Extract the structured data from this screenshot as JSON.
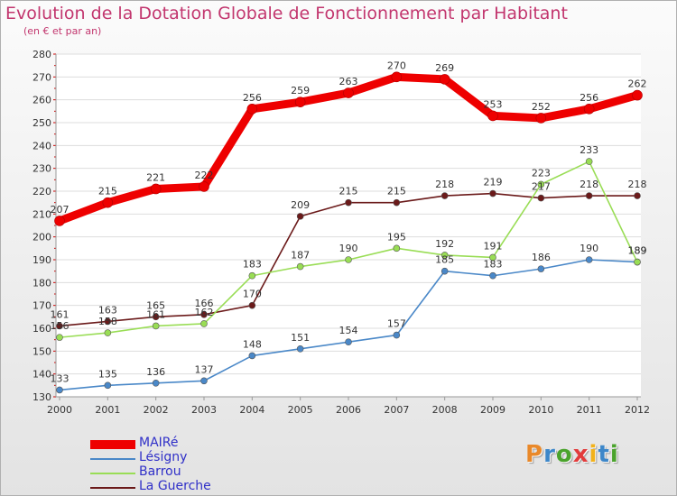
{
  "header": {
    "title": "Evolution de la Dotation Globale de Fonctionnement par Habitant",
    "subtitle": "(en € et par an)"
  },
  "logo": {
    "text": "Proxiti",
    "colors": [
      "#e9892a",
      "#3d87c9",
      "#4aa32c",
      "#e23b3b",
      "#f2b21b",
      "#3d87c9",
      "#4aa32c"
    ]
  },
  "chart_data": {
    "type": "line",
    "title": "Evolution de la Dotation Globale de Fonctionnement par Habitant",
    "subtitle": "(en € et par an)",
    "xlabel": "",
    "ylabel": "",
    "x": [
      "2000",
      "2001",
      "2002",
      "2003",
      "2004",
      "2005",
      "2006",
      "2007",
      "2008",
      "2009",
      "2010",
      "2011",
      "2012"
    ],
    "ylim": [
      130,
      280
    ],
    "yticks": [
      130,
      140,
      150,
      160,
      170,
      180,
      190,
      200,
      210,
      220,
      230,
      240,
      250,
      260,
      270,
      280
    ],
    "grid": "horizontal",
    "legend_position": "bottom-left",
    "series": [
      {
        "name": "MAIRé",
        "color": "#ee0000",
        "values": [
          207,
          215,
          221,
          222,
          256,
          259,
          263,
          270,
          269,
          253,
          252,
          256,
          262
        ]
      },
      {
        "name": "Lésigny",
        "color": "#4a88c8",
        "values": [
          133,
          135,
          136,
          137,
          148,
          151,
          154,
          157,
          185,
          183,
          186,
          190,
          189
        ]
      },
      {
        "name": "Barrou",
        "color": "#99dd55",
        "values": [
          156,
          158,
          161,
          162,
          183,
          187,
          190,
          195,
          192,
          191,
          223,
          233,
          189
        ]
      },
      {
        "name": "La Guerche",
        "color": "#6b1a1a",
        "values": [
          161,
          163,
          165,
          166,
          170,
          209,
          215,
          215,
          218,
          219,
          217,
          218,
          218
        ]
      }
    ]
  }
}
